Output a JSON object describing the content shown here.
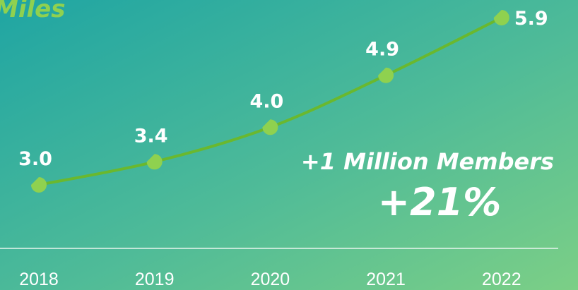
{
  "chart_data": {
    "type": "line",
    "title": "Miles",
    "categories": [
      "2018",
      "2019",
      "2020",
      "2021",
      "2022"
    ],
    "series": [
      {
        "color": "#6ab82e",
        "values": [
          3.0,
          3.4,
          4.0,
          4.9,
          5.9
        ],
        "value_labels": [
          "3.0",
          "3.4",
          "4.0",
          "4.9",
          "5.9"
        ]
      }
    ],
    "annotations": [
      "+1 Million Members",
      "+21%"
    ]
  }
}
